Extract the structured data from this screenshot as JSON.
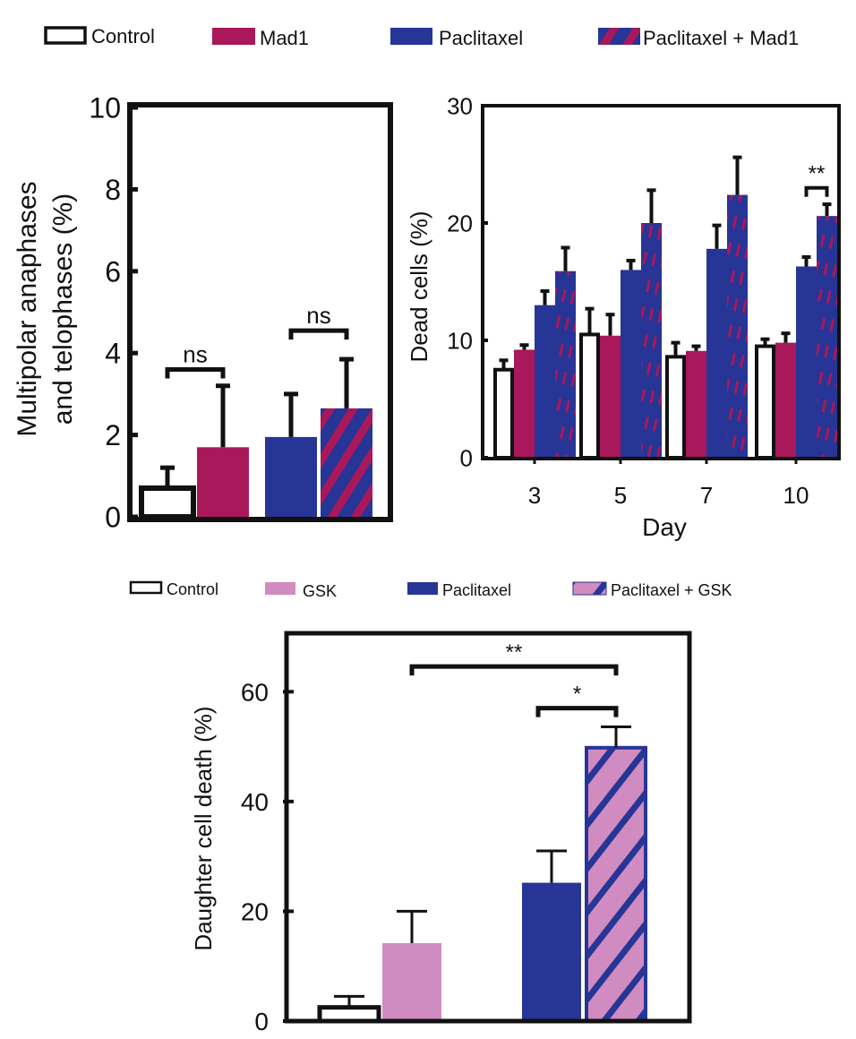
{
  "colors": {
    "control": "#ffffff",
    "mad1": "#a8185a",
    "paclitaxel": "#263596",
    "gsk": "#d08cc0",
    "outline": "#111111",
    "error": "#111111"
  },
  "legend_top": [
    "Control",
    "Mad1",
    "Paclitaxel",
    "Paclitaxel + Mad1"
  ],
  "legend_bottom": [
    "Control",
    "GSK",
    "Paclitaxel",
    "Paclitaxel + GSK"
  ],
  "chart_data": [
    {
      "id": "panel-a",
      "type": "bar",
      "title": "",
      "xlabel": "",
      "ylabel": "Multipolar anaphases and telophases (%)",
      "ylim": [
        0,
        10
      ],
      "yticks": [
        0,
        2,
        4,
        6,
        8,
        10
      ],
      "categories": [
        "Control",
        "Mad1",
        "Paclitaxel",
        "Paclitaxel + Mad1"
      ],
      "values": [
        0.7,
        1.7,
        1.95,
        2.65
      ],
      "errors": [
        0.5,
        1.5,
        1.05,
        1.2
      ],
      "annotations": [
        {
          "text": "ns",
          "from": 0,
          "to": 1,
          "level": 3.6
        },
        {
          "text": "ns",
          "from": 2,
          "to": 3,
          "level": 4.55
        }
      ]
    },
    {
      "id": "panel-b",
      "type": "bar",
      "title": "",
      "xlabel": "Day",
      "ylabel": "Dead cells (%)",
      "ylim": [
        0,
        30
      ],
      "yticks": [
        0,
        10,
        20,
        30
      ],
      "categories": [
        "3",
        "5",
        "7",
        "10"
      ],
      "series": [
        {
          "name": "Control",
          "values": [
            7.5,
            10.5,
            8.6,
            9.5
          ],
          "errors": [
            0.8,
            2.2,
            1.2,
            0.6
          ]
        },
        {
          "name": "Mad1",
          "values": [
            9.2,
            10.4,
            9.1,
            9.8
          ],
          "errors": [
            0.4,
            1.8,
            0.4,
            0.8
          ]
        },
        {
          "name": "Paclitaxel",
          "values": [
            13.0,
            16.0,
            17.8,
            16.3
          ],
          "errors": [
            1.2,
            0.8,
            2.0,
            0.8
          ]
        },
        {
          "name": "Paclitaxel + Mad1",
          "values": [
            15.9,
            20.0,
            22.4,
            20.6
          ],
          "errors": [
            2.0,
            2.8,
            3.2,
            1.0
          ]
        }
      ],
      "annotations": [
        {
          "text": "**",
          "category": 3,
          "from": 2,
          "to": 3,
          "level": 23.0
        }
      ]
    },
    {
      "id": "panel-c",
      "type": "bar",
      "title": "",
      "xlabel": "",
      "ylabel": "Daughter cell death (%)",
      "ylim": [
        0,
        70
      ],
      "yticks": [
        0,
        20,
        40,
        60
      ],
      "categories": [
        "Control",
        "GSK",
        "Paclitaxel",
        "Paclitaxel + GSK"
      ],
      "values": [
        2.5,
        14.2,
        25.2,
        49.8
      ],
      "errors": [
        2.0,
        5.8,
        5.8,
        3.8
      ],
      "annotations": [
        {
          "text": "**",
          "from": 1,
          "to": 3,
          "level": 64.6
        },
        {
          "text": "*",
          "from": 2,
          "to": 3,
          "level": 57.0
        }
      ]
    }
  ]
}
